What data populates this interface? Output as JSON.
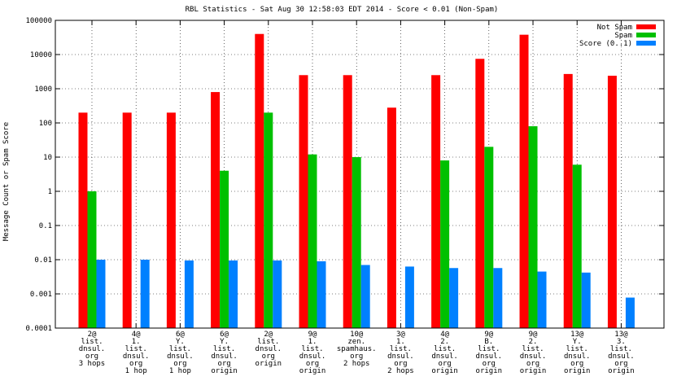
{
  "chart_data": {
    "type": "bar",
    "title": "RBL Statistics - Sat Aug 30 12:58:03 EDT 2014 - Score < 0.01 (Non-Spam)",
    "xlabel": "",
    "ylabel": "Message Count or Spam Score",
    "yscale": "log",
    "ylim": [
      0.0001,
      100000
    ],
    "yticks": [
      "0.0001",
      "0.001",
      "0.01",
      "0.1",
      "1",
      "10",
      "100",
      "1000",
      "10000",
      "100000"
    ],
    "grid": true,
    "legend": "top-right",
    "categories": [
      [
        "2@",
        "list.",
        "dnsul.",
        "org",
        "3 hops"
      ],
      [
        "4@",
        "1.",
        "list.",
        "dnsul.",
        "org",
        "1 hop"
      ],
      [
        "6@",
        "Y.",
        "list.",
        "dnsul.",
        "org",
        "1 hop"
      ],
      [
        "6@",
        "Y.",
        "list.",
        "dnsul.",
        "org",
        "origin"
      ],
      [
        "2@",
        "list.",
        "dnsul.",
        "org",
        "origin"
      ],
      [
        "9@",
        "1.",
        "list.",
        "dnsul.",
        "org",
        "origin"
      ],
      [
        "10@",
        "zen.",
        "spamhaus.",
        "org",
        "2 hops"
      ],
      [
        "3@",
        "1.",
        "list.",
        "dnsul.",
        "org",
        "2 hops"
      ],
      [
        "4@",
        "2.",
        "list.",
        "dnsul.",
        "org",
        "origin"
      ],
      [
        "9@",
        "B.",
        "list.",
        "dnsul.",
        "org",
        "origin"
      ],
      [
        "9@",
        "2.",
        "list.",
        "dnsul.",
        "org",
        "origin"
      ],
      [
        "13@",
        "Y.",
        "list.",
        "dnsul.",
        "org",
        "origin"
      ],
      [
        "13@",
        "3.",
        "list.",
        "dnsul.",
        "org",
        "origin"
      ]
    ],
    "series": [
      {
        "name": "Not Spam",
        "color": "#ff0000",
        "values": [
          200,
          200,
          200,
          800,
          40000,
          2500,
          2500,
          280,
          2500,
          7500,
          38000,
          2700,
          2400
        ]
      },
      {
        "name": "Spam",
        "color": "#00c000",
        "values": [
          1,
          null,
          null,
          4,
          200,
          12,
          10,
          null,
          8,
          20,
          80,
          6,
          null
        ]
      },
      {
        "name": "Score (0..1)",
        "color": "#0080ff",
        "values": [
          0.01,
          0.01,
          0.0095,
          0.0095,
          0.0095,
          0.009,
          0.007,
          0.0063,
          0.0057,
          0.0057,
          0.0045,
          0.0042,
          0.00078
        ]
      }
    ]
  }
}
